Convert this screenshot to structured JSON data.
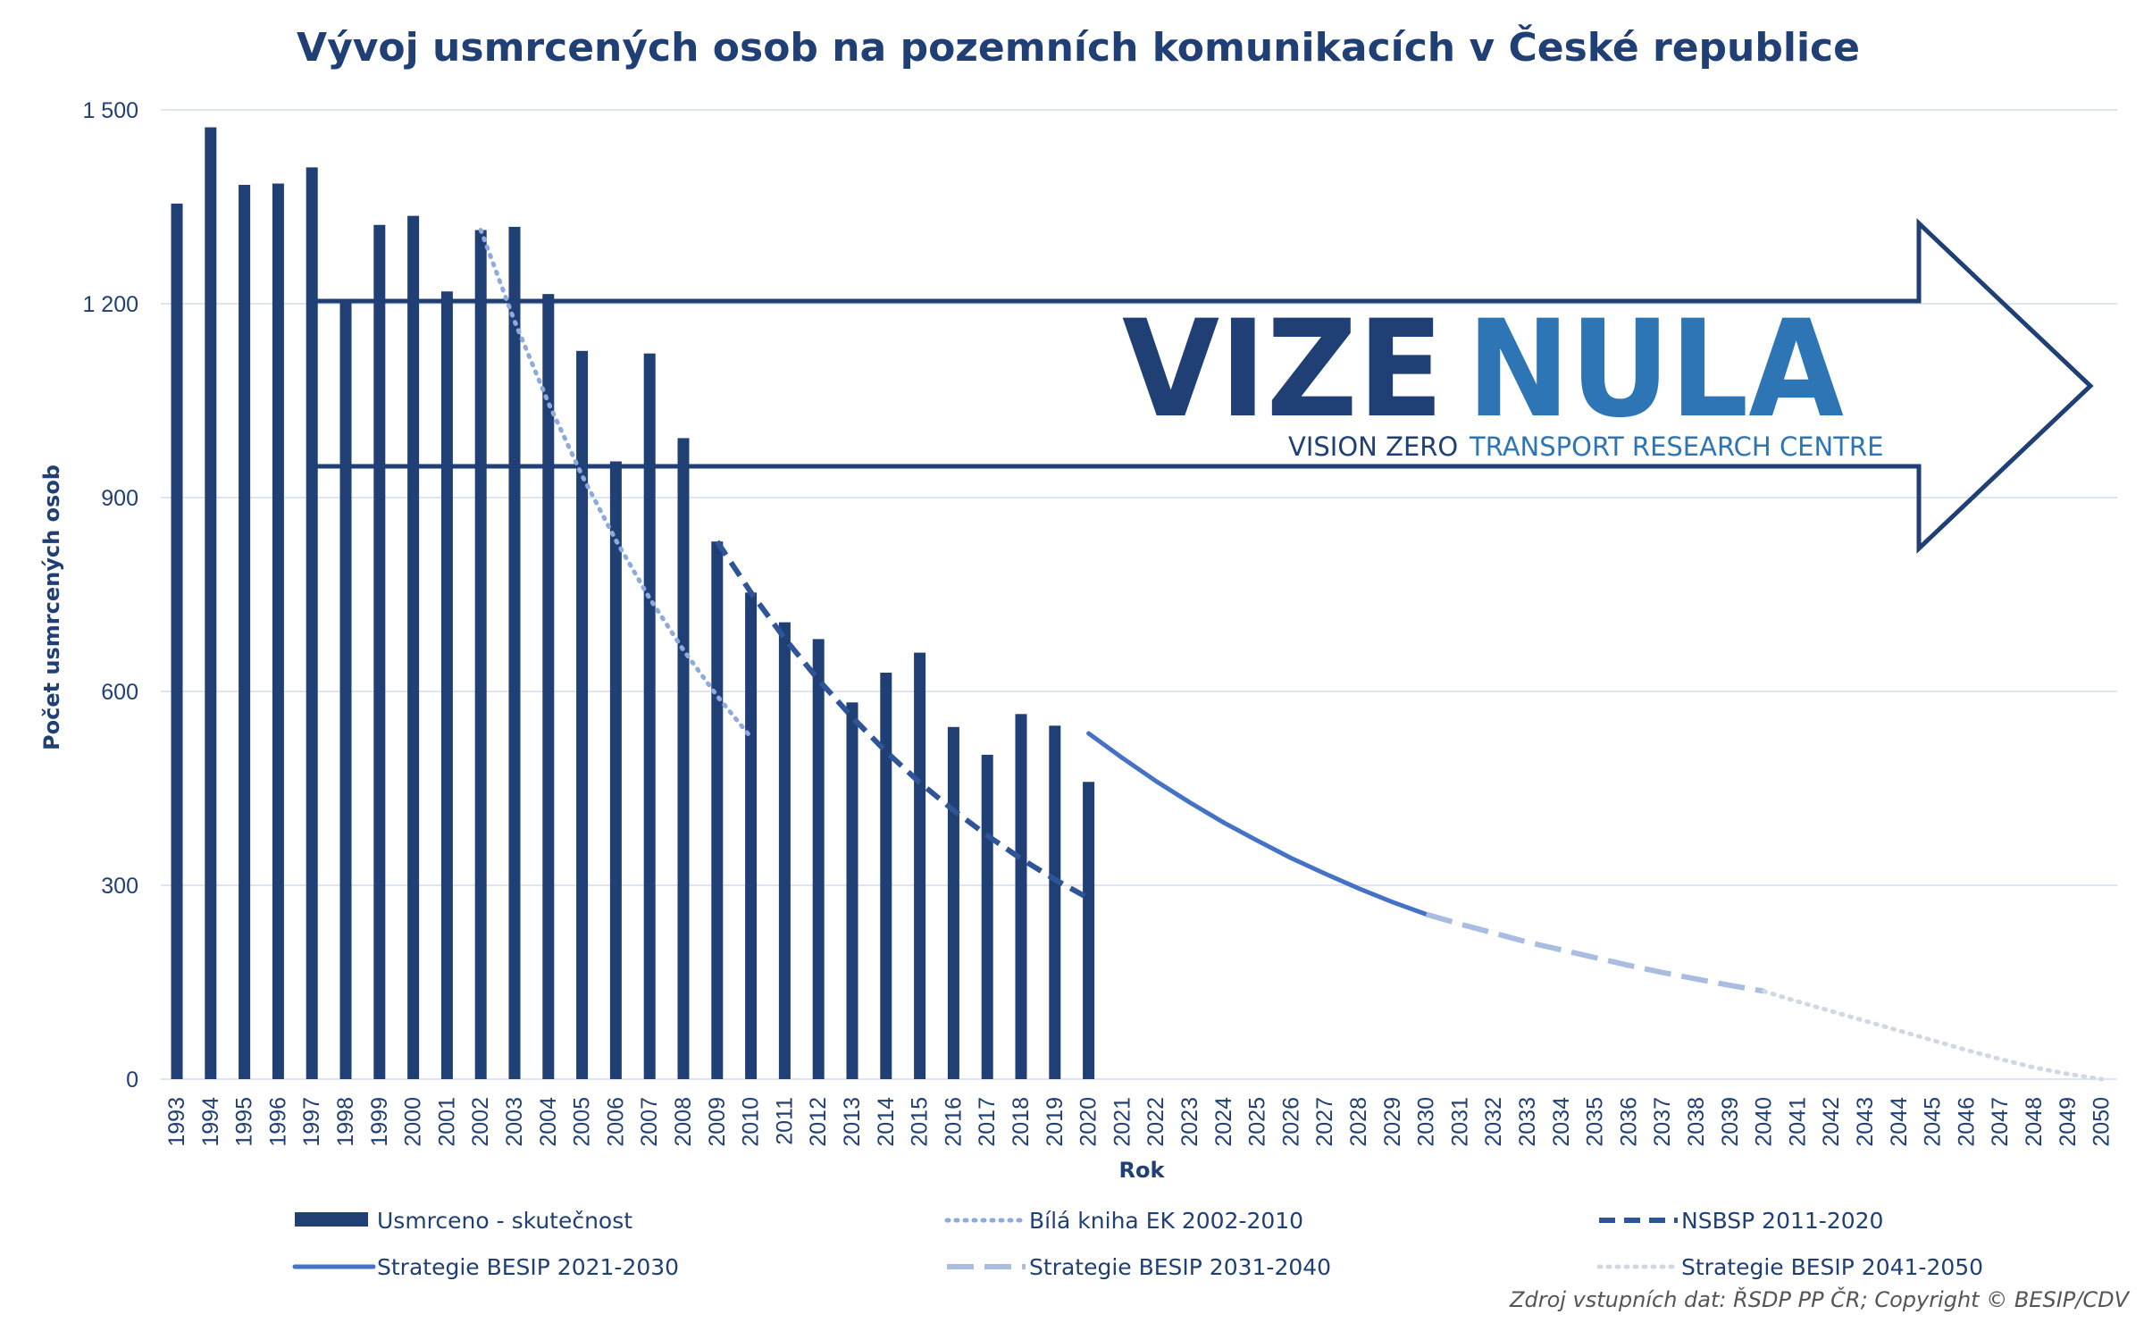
{
  "chart_data": {
    "type": "bar",
    "title": "Vývoj usmrcených osob na pozemních komunikacích v České republice",
    "xlabel": "Rok",
    "ylabel": "Počet usmrcených osob",
    "ylim": [
      0,
      1500
    ],
    "yticks": [
      0,
      300,
      600,
      900,
      1200,
      1500
    ],
    "ytick_labels": [
      "0",
      "300",
      "600",
      "900",
      "1 200",
      "1 500"
    ],
    "grid": true,
    "years": [
      "1993",
      "1994",
      "1995",
      "1996",
      "1997",
      "1998",
      "1999",
      "2000",
      "2001",
      "2002",
      "2003",
      "2004",
      "2005",
      "2006",
      "2007",
      "2008",
      "2009",
      "2010",
      "2011",
      "2012",
      "2013",
      "2014",
      "2015",
      "2016",
      "2017",
      "2018",
      "2019",
      "2020",
      "2021",
      "2022",
      "2023",
      "2024",
      "2025",
      "2026",
      "2027",
      "2028",
      "2029",
      "2030",
      "2031",
      "2032",
      "2033",
      "2034",
      "2035",
      "2036",
      "2037",
      "2038",
      "2039",
      "2040",
      "2041",
      "2042",
      "2043",
      "2044",
      "2045",
      "2046",
      "2047",
      "2048",
      "2049",
      "2050"
    ],
    "bars": {
      "name": "Usmrceno - skutečnost",
      "color": "#1f3f75",
      "values": [
        1355,
        1473,
        1384,
        1386,
        1411,
        1206,
        1322,
        1336,
        1219,
        1314,
        1319,
        1215,
        1127,
        956,
        1123,
        992,
        832,
        753,
        707,
        681,
        583,
        629,
        660,
        545,
        502,
        565,
        547,
        460
      ]
    },
    "lines": [
      {
        "name": "Bílá kniha EK 2002-2010",
        "style": "dotted",
        "color": "#8faadc",
        "x_start": "2002",
        "values": [
          1314,
          1173,
          1047,
          934,
          834,
          744,
          664,
          593,
          529
        ]
      },
      {
        "name": "NSBSP 2011-2020",
        "style": "dashed",
        "color": "#2e5597",
        "x_start": "2009",
        "values": [
          832,
          753,
          682,
          618,
          560,
          507,
          459,
          416,
          377,
          341,
          309,
          280
        ]
      },
      {
        "name": "Strategie BESIP 2021-2030",
        "style": "solid",
        "color": "#4472c4",
        "x_start": "2020",
        "values": [
          535,
          497,
          461,
          428,
          397,
          369,
          342,
          318,
          295,
          274,
          255
        ]
      },
      {
        "name": "Strategie BESIP 2031-2040",
        "style": "long-dashed",
        "color": "#a9bde1",
        "x_start": "2030",
        "values": [
          255,
          240,
          226,
          212,
          200,
          188,
          176,
          165,
          155,
          145,
          136
        ]
      },
      {
        "name": "Strategie BESIP 2041-2050",
        "style": "dotted",
        "color": "#d0d8e4",
        "x_start": "2040",
        "values": [
          136,
          120,
          105,
          90,
          75,
          60,
          45,
          31,
          18,
          8,
          0
        ]
      }
    ],
    "legend_order": [
      "Usmrceno - skutečnost",
      "Bílá kniha EK 2002-2010",
      "NSBSP 2011-2020",
      "Strategie BESIP 2021-2030",
      "Strategie BESIP 2031-2040",
      "Strategie BESIP 2041-2050"
    ]
  },
  "logo": {
    "vize": "VIZE",
    "nula": "NULA",
    "vision_zero": "VISION ZERO",
    "centre": "TRANSPORT RESEARCH CENTRE",
    "color_dark": "#1f3f75",
    "color_light": "#2e75b6"
  },
  "source": "Zdroj vstupních dat: ŘSDP PP ČR; Copyright © BESIP/CDV"
}
